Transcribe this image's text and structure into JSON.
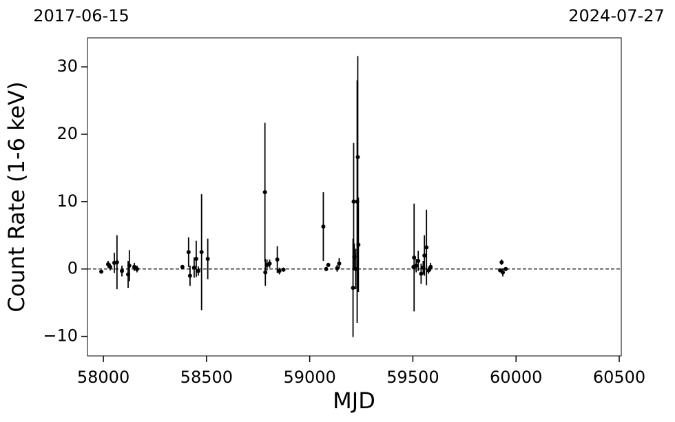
{
  "chart_data": {
    "type": "scatter",
    "top_labels": [
      "2017-06-15",
      "2024-07-27"
    ],
    "xlabel": "MJD",
    "ylabel": "Count Rate (1-6 keV)",
    "xlim": [
      57923,
      60510
    ],
    "ylim": [
      -12.9,
      34.3
    ],
    "xticks": [
      58000,
      58500,
      59000,
      59500,
      60000,
      60500
    ],
    "yticks": [
      {
        "value": -10,
        "label": "−10"
      },
      0,
      10,
      20,
      30
    ],
    "hline": 0,
    "series": [
      {
        "color": "#000000",
        "x": [
          57990,
          58023,
          58033,
          58053,
          58066,
          58090,
          58120,
          58126,
          58150,
          58163,
          58383,
          58413,
          58420,
          58440,
          58450,
          58460,
          58476,
          58506,
          58783,
          58785,
          58793,
          58806,
          58843,
          58853,
          58873,
          59066,
          59080,
          59090,
          59133,
          59143,
          59210,
          59213,
          59216,
          59223,
          59230,
          59233,
          59236,
          59503,
          59506,
          59516,
          59526,
          59540,
          59550,
          59556,
          59566,
          59576,
          59586,
          59923,
          59930,
          59936,
          59950
        ],
        "values": [
          -0.4,
          0.7,
          0.3,
          0.9,
          1.0,
          -0.3,
          -0.8,
          0.5,
          0.3,
          0.0,
          0.3,
          2.5,
          -1.0,
          0.2,
          1.5,
          -0.3,
          2.5,
          1.5,
          11.4,
          -0.5,
          0.6,
          0.8,
          1.4,
          -0.3,
          -0.1,
          6.3,
          0.0,
          0.6,
          0.1,
          0.8,
          -2.8,
          10.0,
          1.8,
          0.0,
          10.0,
          16.6,
          3.6,
          0.3,
          1.7,
          0.5,
          1.2,
          -0.7,
          0.2,
          2.0,
          3.2,
          -0.2,
          0.3,
          -0.2,
          1.0,
          -0.5,
          0.0
        ],
        "errors": [
          0.2,
          0.5,
          0.5,
          1.5,
          4,
          0.8,
          2,
          2.3,
          0.6,
          0.5,
          0.3,
          2.2,
          1.5,
          1.5,
          2.7,
          0.7,
          8.6,
          3,
          10.3,
          2.0,
          0.8,
          0.6,
          2,
          0.5,
          0.3,
          5.1,
          0.3,
          0.3,
          0.5,
          0.8,
          7.3,
          8.7,
          2,
          3,
          18,
          15,
          7,
          0.3,
          8,
          1,
          1.5,
          1.5,
          1,
          3,
          5.6,
          0.5,
          0.6,
          0.3,
          0.4,
          0.6,
          0.2
        ]
      }
    ]
  }
}
